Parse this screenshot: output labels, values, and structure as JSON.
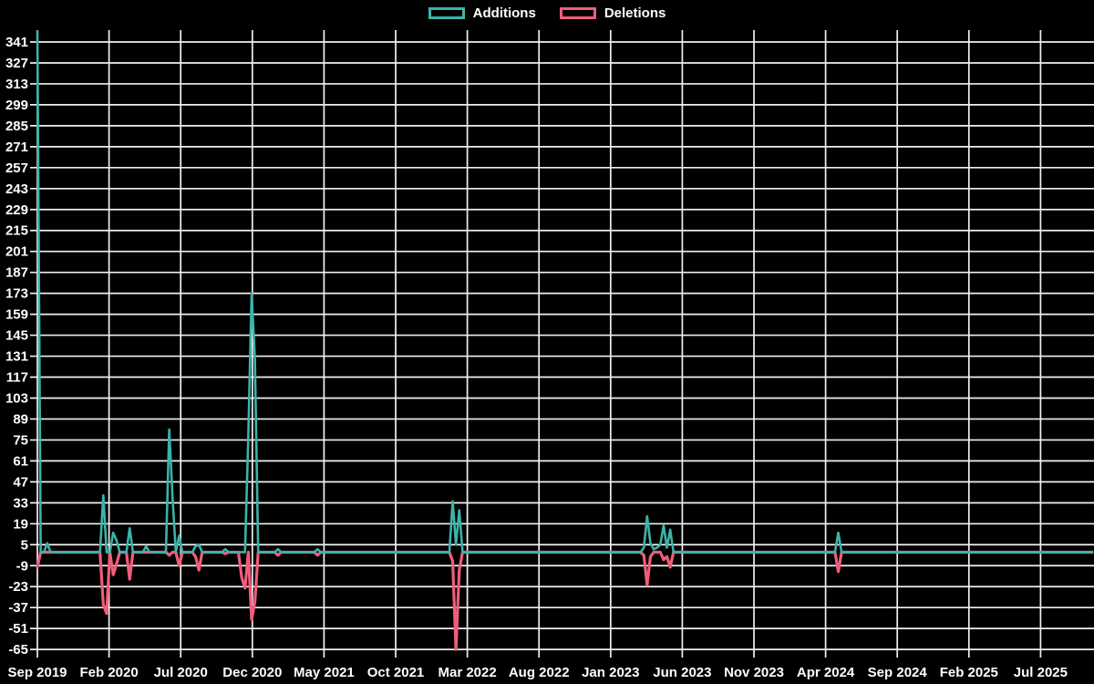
{
  "legend": {
    "items": [
      {
        "label": "Additions",
        "color": "#3bb3aa"
      },
      {
        "label": "Deletions",
        "color": "#ef5d7b"
      }
    ]
  },
  "colors": {
    "background": "#000000",
    "grid": "#f0f0f0",
    "text": "#ffffff",
    "additions": "#3bb3aa",
    "deletions": "#ef5d7b"
  },
  "chart_data": {
    "type": "line",
    "title": "",
    "xlabel": "",
    "ylabel": "",
    "legend_position": "top-center",
    "grid": true,
    "x_axis": {
      "tick_labels": [
        "Sep 2019",
        "Feb 2020",
        "Jul 2020",
        "Dec 2020",
        "May 2021",
        "Oct 2021",
        "Mar 2022",
        "Aug 2022",
        "Jan 2023",
        "Jun 2023",
        "Nov 2023",
        "Apr 2024",
        "Sep 2024",
        "Feb 2025",
        "Jul 2025"
      ],
      "unit": "weeks",
      "months_per_tick": 5
    },
    "y_axis": {
      "tick_labels": [
        341,
        327,
        313,
        299,
        285,
        271,
        257,
        243,
        229,
        215,
        201,
        187,
        173,
        159,
        145,
        131,
        117,
        103,
        89,
        75,
        61,
        47,
        33,
        19,
        5,
        -9,
        -23,
        -37,
        -51,
        -65
      ],
      "tick_step": 14,
      "top_value": 348,
      "bottom_value": -65
    },
    "weeks_total": 320,
    "default_value": 0,
    "series": [
      {
        "name": "Additions",
        "color": "#3bb3aa",
        "events": [
          [
            0,
            348
          ],
          [
            3,
            6
          ],
          [
            20,
            38
          ],
          [
            23,
            13
          ],
          [
            24,
            8
          ],
          [
            28,
            16
          ],
          [
            33,
            4
          ],
          [
            40,
            82
          ],
          [
            41,
            37
          ],
          [
            43,
            11
          ],
          [
            48,
            4
          ],
          [
            49,
            5
          ],
          [
            57,
            2
          ],
          [
            64,
            78
          ],
          [
            65,
            173
          ],
          [
            66,
            129
          ],
          [
            73,
            2
          ],
          [
            85,
            2
          ],
          [
            126,
            34
          ],
          [
            127,
            5
          ],
          [
            128,
            28
          ],
          [
            184,
            3
          ],
          [
            185,
            24
          ],
          [
            186,
            6
          ],
          [
            187,
            2
          ],
          [
            188,
            3
          ],
          [
            189,
            5
          ],
          [
            190,
            18
          ],
          [
            191,
            3
          ],
          [
            192,
            15
          ],
          [
            243,
            13
          ]
        ]
      },
      {
        "name": "Deletions",
        "color": "#ef5d7b",
        "events": [
          [
            0,
            -10
          ],
          [
            20,
            -35
          ],
          [
            21,
            -41
          ],
          [
            23,
            -15
          ],
          [
            24,
            -8
          ],
          [
            28,
            -18
          ],
          [
            40,
            -2
          ],
          [
            43,
            -9
          ],
          [
            48,
            -3
          ],
          [
            49,
            -12
          ],
          [
            57,
            -1
          ],
          [
            62,
            -17
          ],
          [
            63,
            -24
          ],
          [
            65,
            -45
          ],
          [
            66,
            -33
          ],
          [
            73,
            -2
          ],
          [
            85,
            -2
          ],
          [
            126,
            -6
          ],
          [
            127,
            -65
          ],
          [
            128,
            -12
          ],
          [
            184,
            -2
          ],
          [
            185,
            -22
          ],
          [
            186,
            -3
          ],
          [
            190,
            -5
          ],
          [
            191,
            -3
          ],
          [
            192,
            -10
          ],
          [
            243,
            -13
          ]
        ]
      }
    ],
    "notes": "Weekly additions/deletions; every week not listed in events has value 0."
  }
}
